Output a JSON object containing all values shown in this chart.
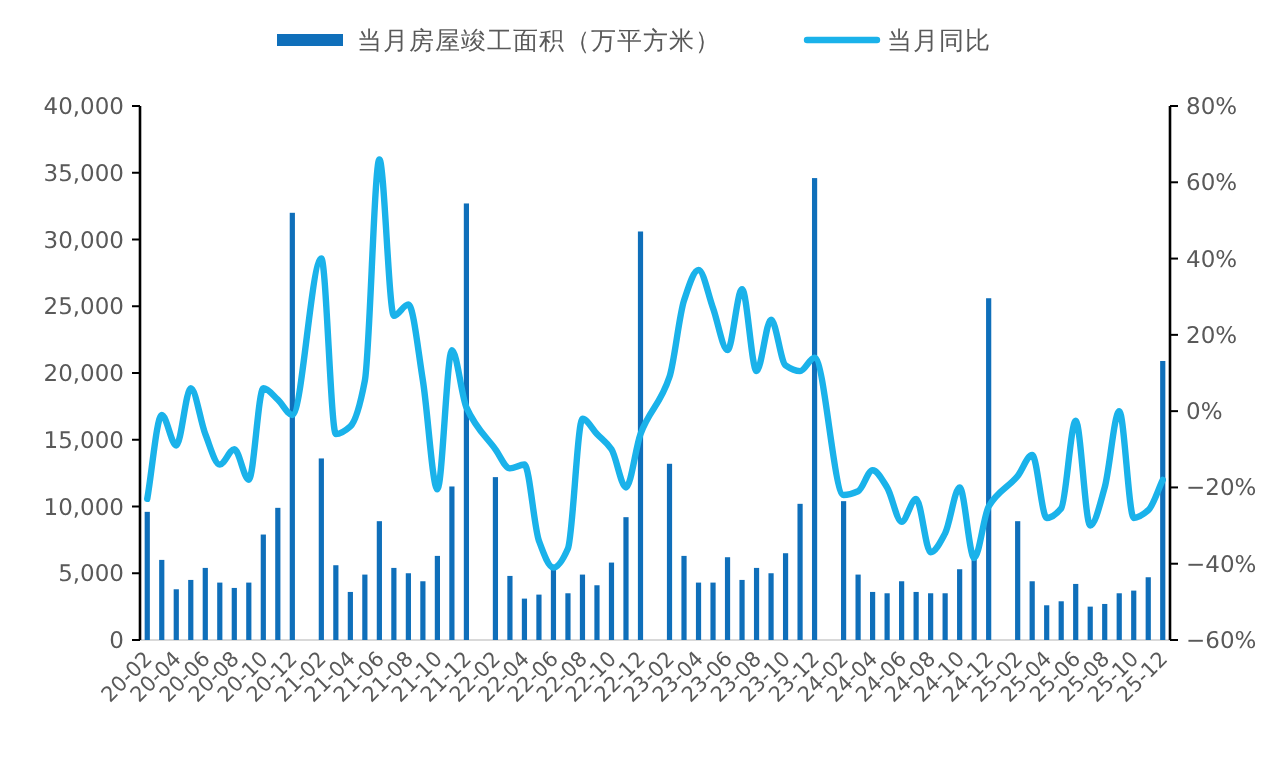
{
  "chart_data": {
    "type": "bar",
    "categories": [
      "20-02",
      null,
      "20-04",
      null,
      "20-06",
      null,
      "20-08",
      null,
      "20-10",
      null,
      "20-12",
      null,
      "21-02",
      null,
      "21-04",
      null,
      "21-06",
      null,
      "21-08",
      null,
      "21-10",
      null,
      "21-12",
      null,
      "22-02",
      null,
      "22-04",
      null,
      "22-06",
      null,
      "22-08",
      null,
      "22-10",
      null,
      "22-12",
      null,
      "23-02",
      null,
      "23-04",
      null,
      "23-06",
      null,
      "23-08",
      null,
      "23-10",
      null,
      "23-12",
      null,
      "24-02",
      null,
      "24-04",
      null,
      "24-06",
      null,
      "24-08",
      null,
      "24-10",
      null,
      "24-12",
      null,
      "25-02",
      null,
      "25-04",
      null,
      "25-06",
      null,
      "25-08",
      null,
      "25-10",
      null,
      "25-12"
    ],
    "series": [
      {
        "name": "当月房屋竣工面积（万平方米）",
        "color": "#0f6fba",
        "values": [
          9600,
          6000,
          3800,
          4500,
          5400,
          4300,
          3900,
          4300,
          7900,
          9900,
          32000,
          null,
          13600,
          5600,
          3600,
          4900,
          8900,
          5400,
          5000,
          4400,
          6300,
          11500,
          32700,
          null,
          12200,
          4800,
          3100,
          3400,
          5500,
          3500,
          4900,
          4100,
          5800,
          9200,
          30600,
          null,
          13200,
          6300,
          4300,
          4300,
          6200,
          4500,
          5400,
          5000,
          6500,
          10200,
          34600,
          null,
          10400,
          4900,
          3600,
          3500,
          4400,
          3600,
          3500,
          3500,
          5300,
          6100,
          25600,
          null,
          8900,
          4400,
          2600,
          2900,
          4200,
          2500,
          2700,
          3500,
          3700,
          4700,
          20900
        ]
      },
      {
        "name": "当月同比",
        "type": "line",
        "axis": "y2",
        "color": "#1ab2ea",
        "values": [
          -23,
          -1,
          -9,
          6,
          -6,
          -14,
          -10,
          -18,
          6,
          3,
          -1,
          null,
          40,
          -6,
          -4,
          8,
          66,
          25,
          28,
          8,
          -20.5,
          16,
          1,
          null,
          -10,
          -15,
          -14,
          -34,
          -41,
          -36,
          -2,
          -6,
          -10,
          -20,
          -6,
          null,
          9,
          29,
          37,
          27,
          16,
          32,
          10.5,
          24,
          12,
          10.5,
          14,
          null,
          -22,
          -21,
          -15.5,
          -20,
          -29,
          -23,
          -37,
          -32,
          -20,
          -38.5,
          -25,
          null,
          -17,
          -11.5,
          -28,
          -25.5,
          -2.5,
          -30,
          -20,
          0,
          -28,
          -26,
          -18
        ]
      }
    ],
    "ylim": [
      0,
      40000
    ],
    "yticks": [
      0,
      {
        "value": 5000,
        "label": "5,000"
      },
      {
        "value": 10000,
        "label": "10,000"
      },
      {
        "value": 15000,
        "label": "15,000"
      },
      {
        "value": 20000,
        "label": "20,000"
      },
      {
        "value": 25000,
        "label": "25,000"
      },
      {
        "value": 30000,
        "label": "30,000"
      },
      {
        "value": 35000,
        "label": "35,000"
      },
      {
        "value": 40000,
        "label": "40,000"
      }
    ],
    "y2lim": [
      -60,
      80
    ],
    "y2ticks": [
      {
        "value": -60,
        "label": "−60%"
      },
      {
        "value": -40,
        "label": "−40%"
      },
      {
        "value": -20,
        "label": "−20%"
      },
      {
        "value": 0,
        "label": "0%"
      },
      {
        "value": 20,
        "label": "20%"
      },
      {
        "value": 40,
        "label": "40%"
      },
      {
        "value": 60,
        "label": "60%"
      },
      {
        "value": 80,
        "label": "80%"
      }
    ],
    "legend": "top",
    "grid": false
  }
}
